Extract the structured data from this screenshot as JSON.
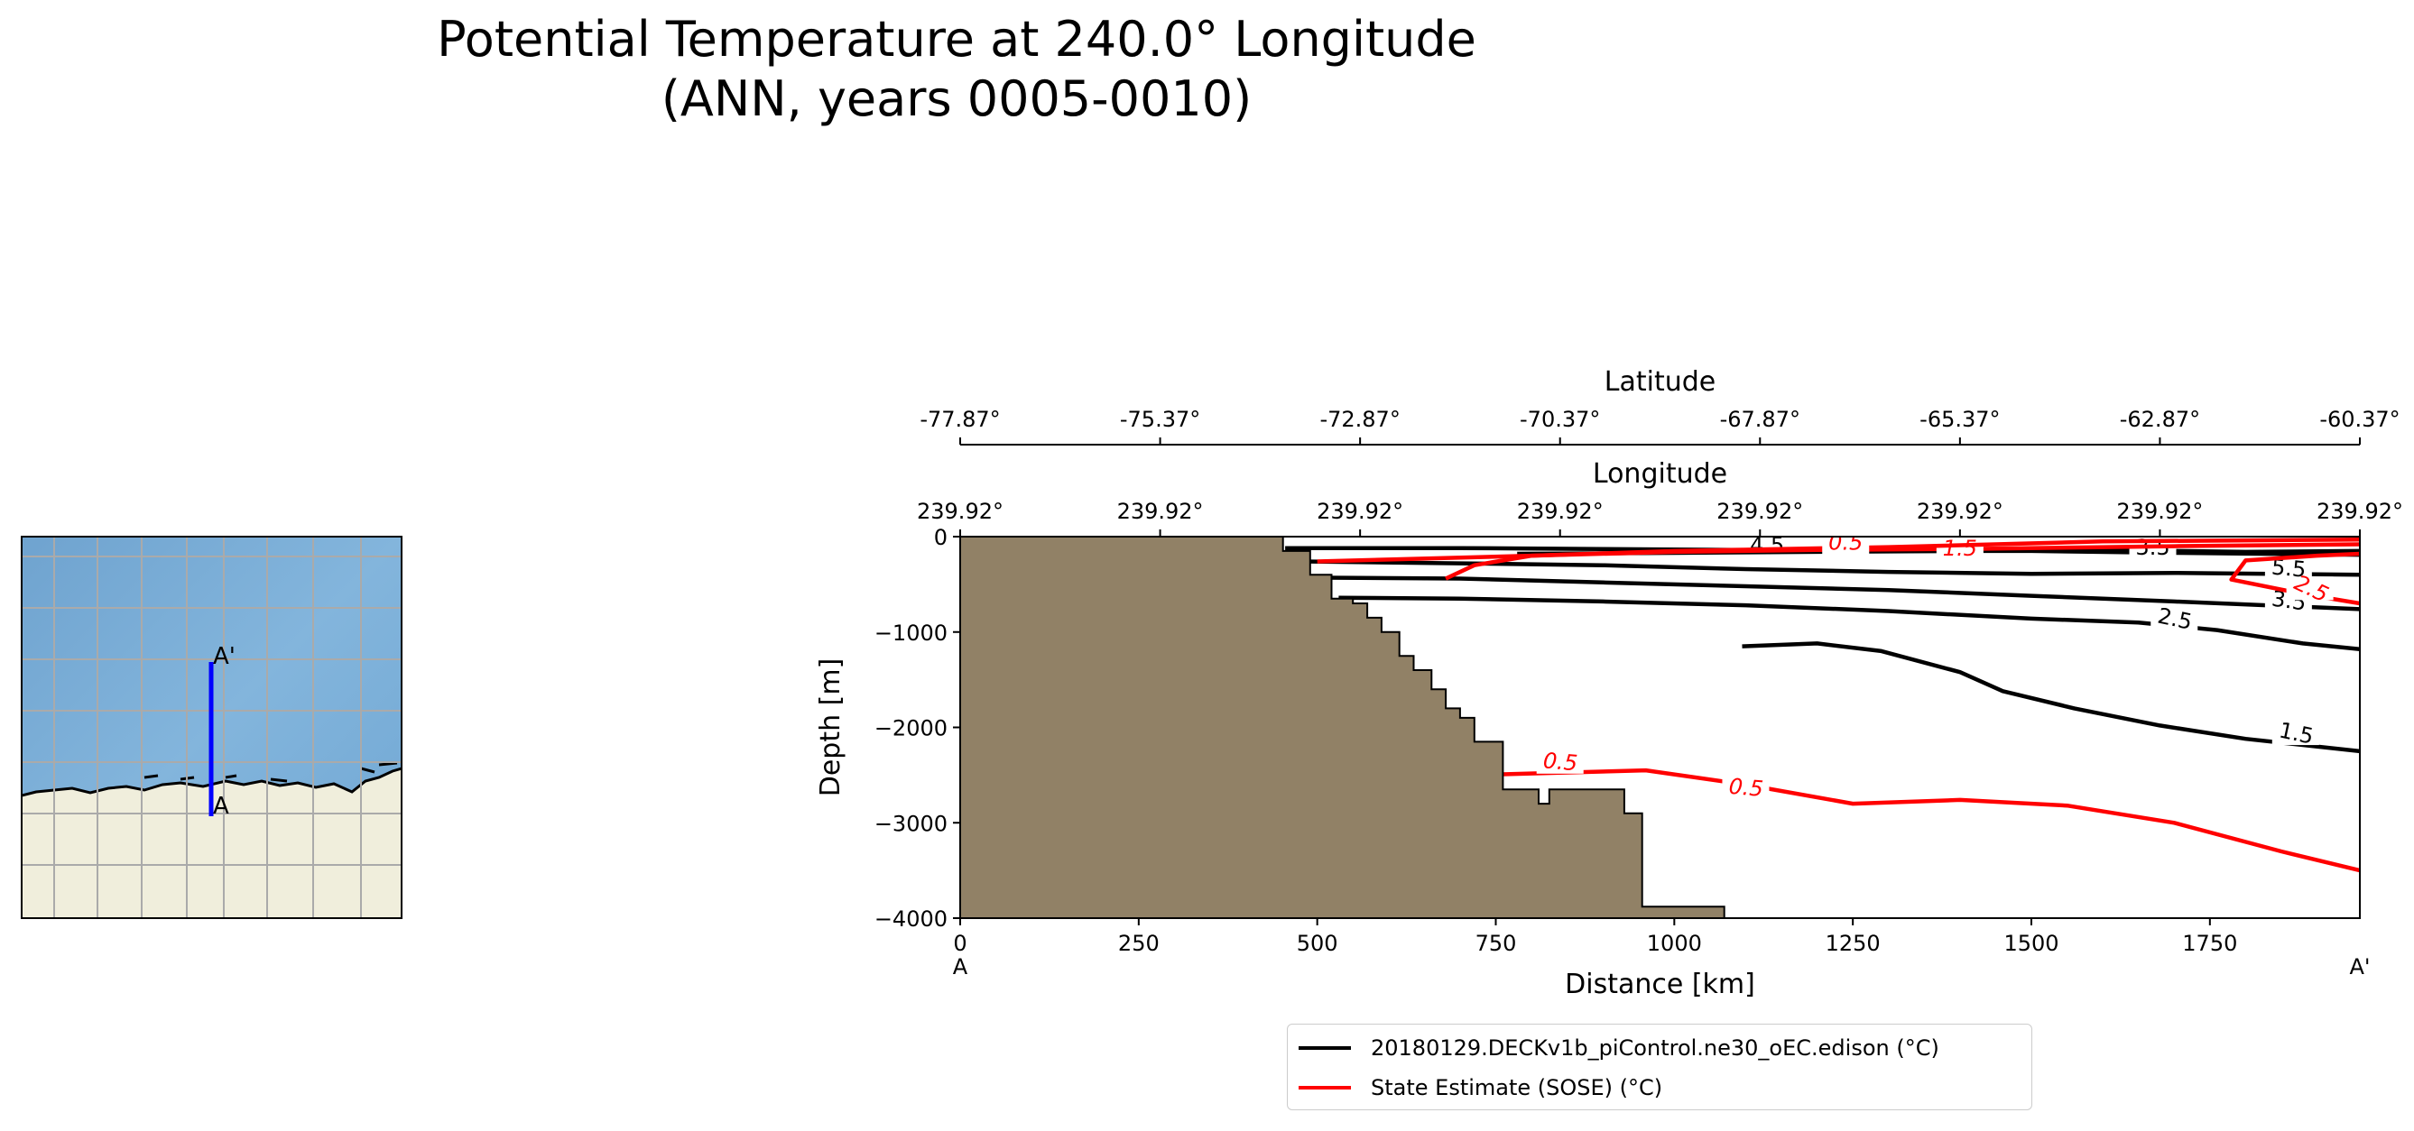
{
  "title_line1": "Potential Temperature at 240.0° Longitude",
  "title_line2": "(ANN, years 0005-0010)",
  "colors": {
    "model": "#000000",
    "obs": "#ff0000",
    "bathymetry": "#918166",
    "ocean": "#7fb0d6",
    "land": "#f0eedc",
    "transect": "#0000ff"
  },
  "inset_map": {
    "start_label": "A",
    "end_label": "A'"
  },
  "chart_data": {
    "type": "contour",
    "xlabel": "Distance [km]",
    "ylabel": "Depth [m]",
    "xlim": [
      0,
      1960
    ],
    "ylim": [
      -4000,
      0
    ],
    "x_ticks": [
      0,
      250,
      500,
      750,
      1000,
      1250,
      1500,
      1750
    ],
    "x_tick_labels": [
      "0",
      "250",
      "500",
      "750",
      "1000",
      "1250",
      "1500",
      "1750"
    ],
    "y_ticks": [
      0,
      -1000,
      -2000,
      -3000,
      -4000
    ],
    "y_tick_labels": [
      "0",
      "−1000",
      "−2000",
      "−3000",
      "−4000"
    ],
    "x_start_label": "A",
    "x_end_label": "A'",
    "top_axis_1": {
      "label": "Latitude",
      "tick_labels": [
        "-77.87°",
        "-75.37°",
        "-72.87°",
        "-70.37°",
        "-67.87°",
        "-65.37°",
        "-62.87°",
        "-60.37°"
      ]
    },
    "top_axis_2": {
      "label": "Longitude",
      "tick_labels": [
        "239.92°",
        "239.92°",
        "239.92°",
        "239.92°",
        "239.92°",
        "239.92°",
        "239.92°",
        "239.92°"
      ]
    },
    "bathymetry": [
      [
        0,
        0
      ],
      [
        452,
        0
      ],
      [
        452,
        -150
      ],
      [
        490,
        -150
      ],
      [
        490,
        -400
      ],
      [
        520,
        -400
      ],
      [
        520,
        -650
      ],
      [
        550,
        -650
      ],
      [
        550,
        -700
      ],
      [
        570,
        -700
      ],
      [
        570,
        -850
      ],
      [
        590,
        -850
      ],
      [
        590,
        -1000
      ],
      [
        615,
        -1000
      ],
      [
        615,
        -1250
      ],
      [
        635,
        -1250
      ],
      [
        635,
        -1400
      ],
      [
        660,
        -1400
      ],
      [
        660,
        -1600
      ],
      [
        680,
        -1600
      ],
      [
        680,
        -1800
      ],
      [
        700,
        -1800
      ],
      [
        700,
        -1900
      ],
      [
        720,
        -1900
      ],
      [
        720,
        -2150
      ],
      [
        760,
        -2150
      ],
      [
        760,
        -2650
      ],
      [
        810,
        -2650
      ],
      [
        810,
        -2800
      ],
      [
        825,
        -2800
      ],
      [
        825,
        -2650
      ],
      [
        930,
        -2650
      ],
      [
        930,
        -2900
      ],
      [
        955,
        -2900
      ],
      [
        955,
        -3880
      ],
      [
        1070,
        -3880
      ],
      [
        1070,
        -4000
      ],
      [
        0,
        -4000
      ]
    ],
    "series": [
      {
        "name": "20180129.DECKv1b_piControl.ne30_oEC.edison (°C)",
        "color": "#000000",
        "contours": [
          {
            "level": "1.5",
            "label_at": [
              1870,
              -2100
            ],
            "label_angle": 12,
            "points": [
              [
                1095,
                -1150
              ],
              [
                1200,
                -1120
              ],
              [
                1290,
                -1200
              ],
              [
                1400,
                -1420
              ],
              [
                1460,
                -1620
              ],
              [
                1560,
                -1800
              ],
              [
                1680,
                -1980
              ],
              [
                1800,
                -2120
              ],
              [
                1960,
                -2250
              ]
            ]
          },
          {
            "level": "2.5",
            "label_at": [
              1700,
              -900
            ],
            "label_angle": 12,
            "points": [
              [
                530,
                -640
              ],
              [
                700,
                -650
              ],
              [
                900,
                -680
              ],
              [
                1100,
                -720
              ],
              [
                1300,
                -780
              ],
              [
                1500,
                -860
              ],
              [
                1650,
                -900
              ],
              [
                1760,
                -980
              ],
              [
                1880,
                -1120
              ],
              [
                1960,
                -1180
              ]
            ]
          },
          {
            "level": "3.5",
            "label_at": [
              1860,
              -710
            ],
            "label_angle": 8,
            "points": [
              [
                510,
                -430
              ],
              [
                700,
                -440
              ],
              [
                900,
                -480
              ],
              [
                1100,
                -520
              ],
              [
                1300,
                -560
              ],
              [
                1500,
                -620
              ],
              [
                1700,
                -680
              ],
              [
                1960,
                -760
              ]
            ]
          },
          {
            "level": "5.5",
            "label_at": [
              1860,
              -370
            ],
            "label_angle": 5,
            "points": [
              [
                480,
                -260
              ],
              [
                700,
                -280
              ],
              [
                900,
                -300
              ],
              [
                1100,
                -340
              ],
              [
                1300,
                -370
              ],
              [
                1500,
                -390
              ],
              [
                1700,
                -380
              ],
              [
                1960,
                -400
              ]
            ]
          },
          {
            "level": "4.5",
            "label_at": [
              1130,
              -130
            ],
            "label_angle": 0,
            "points": [
              [
                455,
                -120
              ],
              [
                700,
                -120
              ],
              [
                900,
                -130
              ],
              [
                1100,
                -140
              ],
              [
                1300,
                -150
              ],
              [
                1500,
                -150
              ],
              [
                1700,
                -170
              ],
              [
                1960,
                -190
              ]
            ]
          },
          {
            "level": "3.5",
            "label_at": [
              1670,
              -150
            ],
            "label_angle": 0,
            "points": [
              [
                780,
                -180
              ],
              [
                1000,
                -170
              ],
              [
                1200,
                -160
              ],
              [
                1400,
                -150
              ],
              [
                1600,
                -140
              ],
              [
                1800,
                -160
              ],
              [
                1960,
                -150
              ]
            ]
          }
        ]
      },
      {
        "name": "State Estimate (SOSE) (°C)",
        "color": "#ff0000",
        "contours": [
          {
            "level": "0.5",
            "label_at": [
              840,
              -2400
            ],
            "label_angle": 5,
            "points": [
              [
                720,
                -2500
              ],
              [
                960,
                -2450
              ],
              [
                1100,
                -2600
              ],
              [
                1250,
                -2800
              ],
              [
                1400,
                -2760
              ],
              [
                1550,
                -2820
              ],
              [
                1700,
                -3000
              ],
              [
                1850,
                -3300
              ],
              [
                1960,
                -3500
              ]
            ]
          },
          {
            "level": "0.5",
            "label_at": [
              1100,
              -2670
            ],
            "label_angle": 5,
            "points": []
          },
          {
            "level": "1.5",
            "label_at": [
              1400,
              -160
            ],
            "label_angle": 0,
            "points": [
              [
                500,
                -260
              ],
              [
                600,
                -240
              ],
              [
                800,
                -200
              ],
              [
                1000,
                -160
              ],
              [
                1200,
                -140
              ],
              [
                1400,
                -130
              ],
              [
                1700,
                -100
              ],
              [
                1960,
                -80
              ]
            ]
          },
          {
            "level": "2.5",
            "label_at": [
              1890,
              -580
            ],
            "label_angle": 25,
            "points": [
              [
                1960,
                -700
              ],
              [
                1880,
                -600
              ],
              [
                1780,
                -450
              ],
              [
                1800,
                -250
              ],
              [
                1900,
                -200
              ],
              [
                1960,
                -180
              ]
            ]
          },
          {
            "level": "0.5",
            "label_at": [
              1240,
              -100
            ],
            "label_angle": 0,
            "points": [
              [
                680,
                -440
              ],
              [
                720,
                -300
              ],
              [
                800,
                -200
              ],
              [
                1000,
                -150
              ],
              [
                1300,
                -110
              ],
              [
                1600,
                -50
              ],
              [
                1960,
                -30
              ]
            ]
          }
        ]
      }
    ],
    "legend": [
      {
        "label": "20180129.DECKv1b_piControl.ne30_oEC.edison (°C)",
        "color": "#000000"
      },
      {
        "label": "State Estimate (SOSE) (°C)",
        "color": "#ff0000"
      }
    ]
  }
}
